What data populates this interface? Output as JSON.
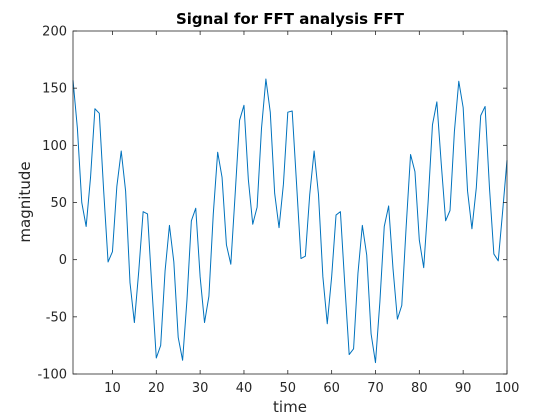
{
  "chart_data": {
    "type": "line",
    "title": "Signal for FFT analysis FFT",
    "xlabel": "time",
    "ylabel": "magnitude",
    "xlim": [
      1,
      100
    ],
    "ylim": [
      -100,
      200
    ],
    "grid": false,
    "xticks": [
      10,
      20,
      30,
      40,
      50,
      60,
      70,
      80,
      90,
      100
    ],
    "yticks": [
      -100,
      -50,
      0,
      50,
      100,
      150,
      200
    ],
    "line_color": "#0072BD",
    "series": [
      {
        "x": [
          1,
          2,
          3,
          4,
          5,
          6,
          7,
          8,
          9,
          10,
          11,
          12,
          13,
          14,
          15,
          16,
          17,
          18,
          19,
          20,
          21,
          22,
          23,
          24,
          25,
          26,
          27,
          28,
          29,
          30,
          31,
          32,
          33,
          34,
          35,
          36,
          37,
          38,
          39,
          40,
          41,
          42,
          43,
          44,
          45,
          46,
          47,
          48,
          49,
          50,
          51,
          52,
          53,
          54,
          55,
          56,
          57,
          58,
          59,
          60,
          61,
          62,
          63,
          64,
          65,
          66,
          67,
          68,
          69,
          70,
          71,
          72,
          73,
          74,
          75,
          76,
          77,
          78,
          79,
          80,
          81,
          82,
          83,
          84,
          85,
          86,
          87,
          88,
          89,
          90,
          91,
          92,
          93,
          94,
          95,
          96,
          97,
          98,
          99,
          100
        ],
        "values": [
          157,
          115,
          50,
          29,
          72,
          132,
          128,
          60,
          -2,
          7,
          64,
          95,
          60,
          -20,
          -55,
          -10,
          42,
          40,
          -25,
          -86,
          -75,
          -10,
          30,
          -2,
          -68,
          -88,
          -35,
          34,
          45,
          -15,
          -55,
          -32,
          40,
          94,
          72,
          13,
          -4,
          58,
          122,
          135,
          70,
          31,
          46,
          115,
          158,
          129,
          58,
          28,
          66,
          129,
          130,
          66,
          1,
          3,
          57,
          95,
          57,
          -15,
          -56,
          -15,
          39,
          42,
          -22,
          -83,
          -78,
          -12,
          30,
          4,
          -65,
          -90,
          -37,
          29,
          47,
          -8,
          -52,
          -40,
          29,
          92,
          77,
          17,
          -7,
          50,
          118,
          138,
          84,
          34,
          43,
          112,
          156,
          133,
          60,
          27,
          63,
          126,
          134,
          63,
          5,
          -1,
          42,
          87
        ]
      }
    ]
  }
}
